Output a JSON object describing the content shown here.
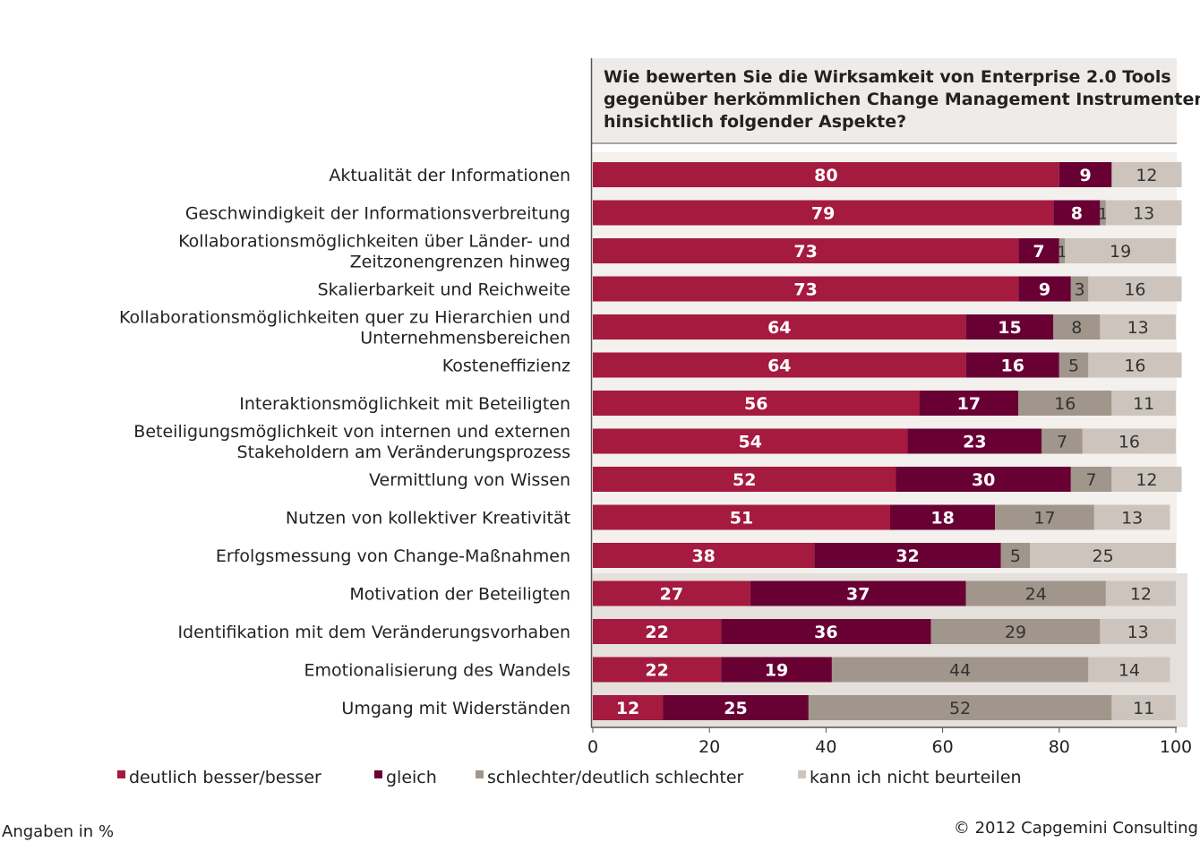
{
  "chart_data": {
    "type": "bar",
    "orientation": "horizontal",
    "stacked": true,
    "title": "Wie bewerten Sie die Wirksamkeit von Enterprise 2.0 Tools gegenüber herkömmlichen Change Management Instrumenten hinsichtlich folgender Aspekte?",
    "title_lines": [
      "Wie bewerten Sie die Wirksamkeit von Enterprise 2.0 Tools",
      "gegenüber herkömmlichen Change Management Instrumenten",
      "hinsichtlich folgender Aspekte?"
    ],
    "categories": [
      [
        "Aktualität der Informationen"
      ],
      [
        "Geschwindigkeit der Informationsverbreitung"
      ],
      [
        "Kollaborationsmöglichkeiten über Länder- und",
        "Zeitzonengrenzen hinweg"
      ],
      [
        "Skalierbarkeit und Reichweite"
      ],
      [
        "Kollaborationsmöglichkeiten quer zu Hierarchien und",
        "Unternehmensbereichen"
      ],
      [
        "Kosteneffizienz"
      ],
      [
        "Interaktionsmöglichkeit mit Beteiligten"
      ],
      [
        "Beteiligungsmöglichkeit von internen und externen",
        "Stakeholdern am Veränderungsprozess"
      ],
      [
        "Vermittlung von Wissen"
      ],
      [
        "Nutzen von kollektiver Kreativität"
      ],
      [
        "Erfolgsmessung von Change-Maßnahmen"
      ],
      [
        "Motivation der Beteiligten"
      ],
      [
        "Identifikation mit dem Veränderungsvorhaben"
      ],
      [
        "Emotionalisierung des Wandels"
      ],
      [
        "Umgang mit Widerständen"
      ]
    ],
    "series": [
      {
        "name": "deutlich besser/besser",
        "color": "#a51a3f",
        "label_color": "#ffffff",
        "values": [
          80,
          79,
          73,
          73,
          64,
          64,
          56,
          54,
          52,
          51,
          38,
          27,
          22,
          22,
          12
        ]
      },
      {
        "name": "gleich",
        "color": "#680034",
        "label_color": "#ffffff",
        "values": [
          9,
          8,
          7,
          9,
          15,
          16,
          17,
          23,
          30,
          18,
          32,
          37,
          36,
          19,
          25
        ]
      },
      {
        "name": "schlechter/deutlich schlechter",
        "color": "#a1968b",
        "label_color": "#333333",
        "values": [
          0,
          1,
          1,
          3,
          8,
          5,
          16,
          7,
          7,
          17,
          5,
          24,
          29,
          44,
          52
        ]
      },
      {
        "name": "kann ich nicht beurteilen",
        "color": "#cdc5bd",
        "label_color": "#333333",
        "values": [
          12,
          13,
          19,
          16,
          13,
          16,
          11,
          16,
          12,
          13,
          25,
          12,
          13,
          14,
          11
        ]
      }
    ],
    "xlim": [
      0,
      100
    ],
    "xticks": [
      "0",
      "20",
      "40",
      "60",
      "80",
      "100"
    ],
    "legend_position": "bottom",
    "grid": false,
    "unit_note": "Angaben in %",
    "source": "© 2012 Capgemini Consulting"
  }
}
